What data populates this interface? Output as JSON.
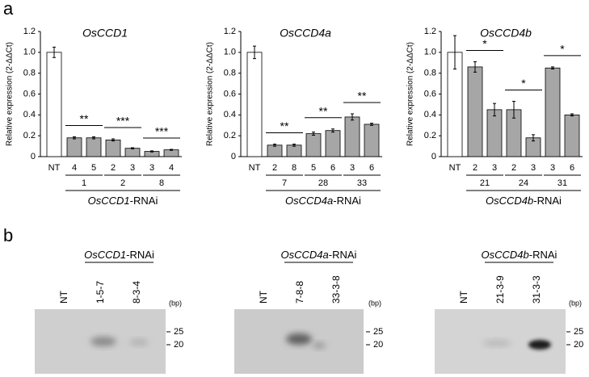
{
  "panel_labels": [
    "a",
    "b"
  ],
  "chart_data": [
    {
      "type": "bar",
      "title": "OsCCD1",
      "ylabel": "Relative expression (2-ΔΔCt)",
      "categories": [
        "NT",
        "4",
        "5",
        "2",
        "3",
        "3",
        "4"
      ],
      "values": [
        1.0,
        0.18,
        0.18,
        0.16,
        0.08,
        0.05,
        0.065
      ],
      "errors": [
        0.05,
        0.01,
        0.01,
        0.01,
        0.005,
        0.005,
        0.005
      ],
      "colors": [
        "#ffffff",
        "#a6a6a6",
        "#a6a6a6",
        "#a6a6a6",
        "#a6a6a6",
        "#a6a6a6",
        "#a6a6a6"
      ],
      "group_labels": [
        "1",
        "2",
        "8"
      ],
      "significance": [
        "**",
        "***",
        "***"
      ],
      "xlabel_gene": "OsCCD1",
      "xlabel_suffix": "-RNAi",
      "ylim": [
        0,
        1.2
      ],
      "yticks": [
        0,
        0.2,
        0.4,
        0.6,
        0.8,
        {
          "value": 1,
          "label": "1.0"
        },
        1.2
      ]
    },
    {
      "type": "bar",
      "title": "OsCCD4a",
      "ylabel": "Relative expression (2-ΔΔCt)",
      "categories": [
        "NT",
        "2",
        "8",
        "5",
        "6",
        "3",
        "6"
      ],
      "values": [
        1.0,
        0.11,
        0.11,
        0.22,
        0.25,
        0.38,
        0.31
      ],
      "errors": [
        0.06,
        0.01,
        0.01,
        0.015,
        0.015,
        0.03,
        0.01
      ],
      "colors": [
        "#ffffff",
        "#a6a6a6",
        "#a6a6a6",
        "#a6a6a6",
        "#a6a6a6",
        "#a6a6a6",
        "#a6a6a6"
      ],
      "group_labels": [
        "7",
        "28",
        "33"
      ],
      "significance": [
        "**",
        "**",
        "**"
      ],
      "xlabel_gene": "OsCCD4a",
      "xlabel_suffix": "-RNAi",
      "ylim": [
        0,
        1.2
      ],
      "yticks": [
        0,
        0.2,
        0.4,
        0.6,
        0.8,
        {
          "value": 1,
          "label": "1.0"
        },
        1.2
      ]
    },
    {
      "type": "bar",
      "title": "OsCCD4b",
      "ylabel": "Relative expression (2-ΔΔCt)",
      "categories": [
        "NT",
        "2",
        "3",
        "2",
        "3",
        "3",
        "6"
      ],
      "values": [
        1.0,
        0.86,
        0.45,
        0.45,
        0.18,
        0.85,
        0.4
      ],
      "errors": [
        0.16,
        0.05,
        0.06,
        0.08,
        0.03,
        0.01,
        0.01
      ],
      "colors": [
        "#ffffff",
        "#a6a6a6",
        "#a6a6a6",
        "#a6a6a6",
        "#a6a6a6",
        "#a6a6a6",
        "#a6a6a6"
      ],
      "group_labels": [
        "21",
        "24",
        "31"
      ],
      "significance": [
        "*",
        "*",
        "*"
      ],
      "xlabel_gene": "OsCCD4b",
      "xlabel_suffix": "-RNAi",
      "ylim": [
        0,
        1.2
      ],
      "yticks": [
        0,
        0.2,
        0.4,
        0.6,
        0.8,
        {
          "value": 1,
          "label": "1.0"
        },
        1.2
      ]
    }
  ],
  "blots": [
    {
      "header_gene": "OsCCD1",
      "header_suffix": "-RNAi",
      "lanes": [
        "NT",
        "1-5-7",
        "8-3-4"
      ],
      "unit": "(bp)",
      "markers": [
        25,
        20
      ]
    },
    {
      "header_gene": "OsCCD4a",
      "header_suffix": "-RNAi",
      "lanes": [
        "NT",
        "7-8-8",
        "33-3-8"
      ],
      "unit": "(bp)",
      "markers": [
        25,
        20
      ]
    },
    {
      "header_gene": "OsCCD4b",
      "header_suffix": "-RNAi",
      "lanes": [
        "NT",
        "21-3-9",
        "31-3-3"
      ],
      "unit": "(bp)",
      "markers": [
        25,
        20
      ]
    }
  ]
}
